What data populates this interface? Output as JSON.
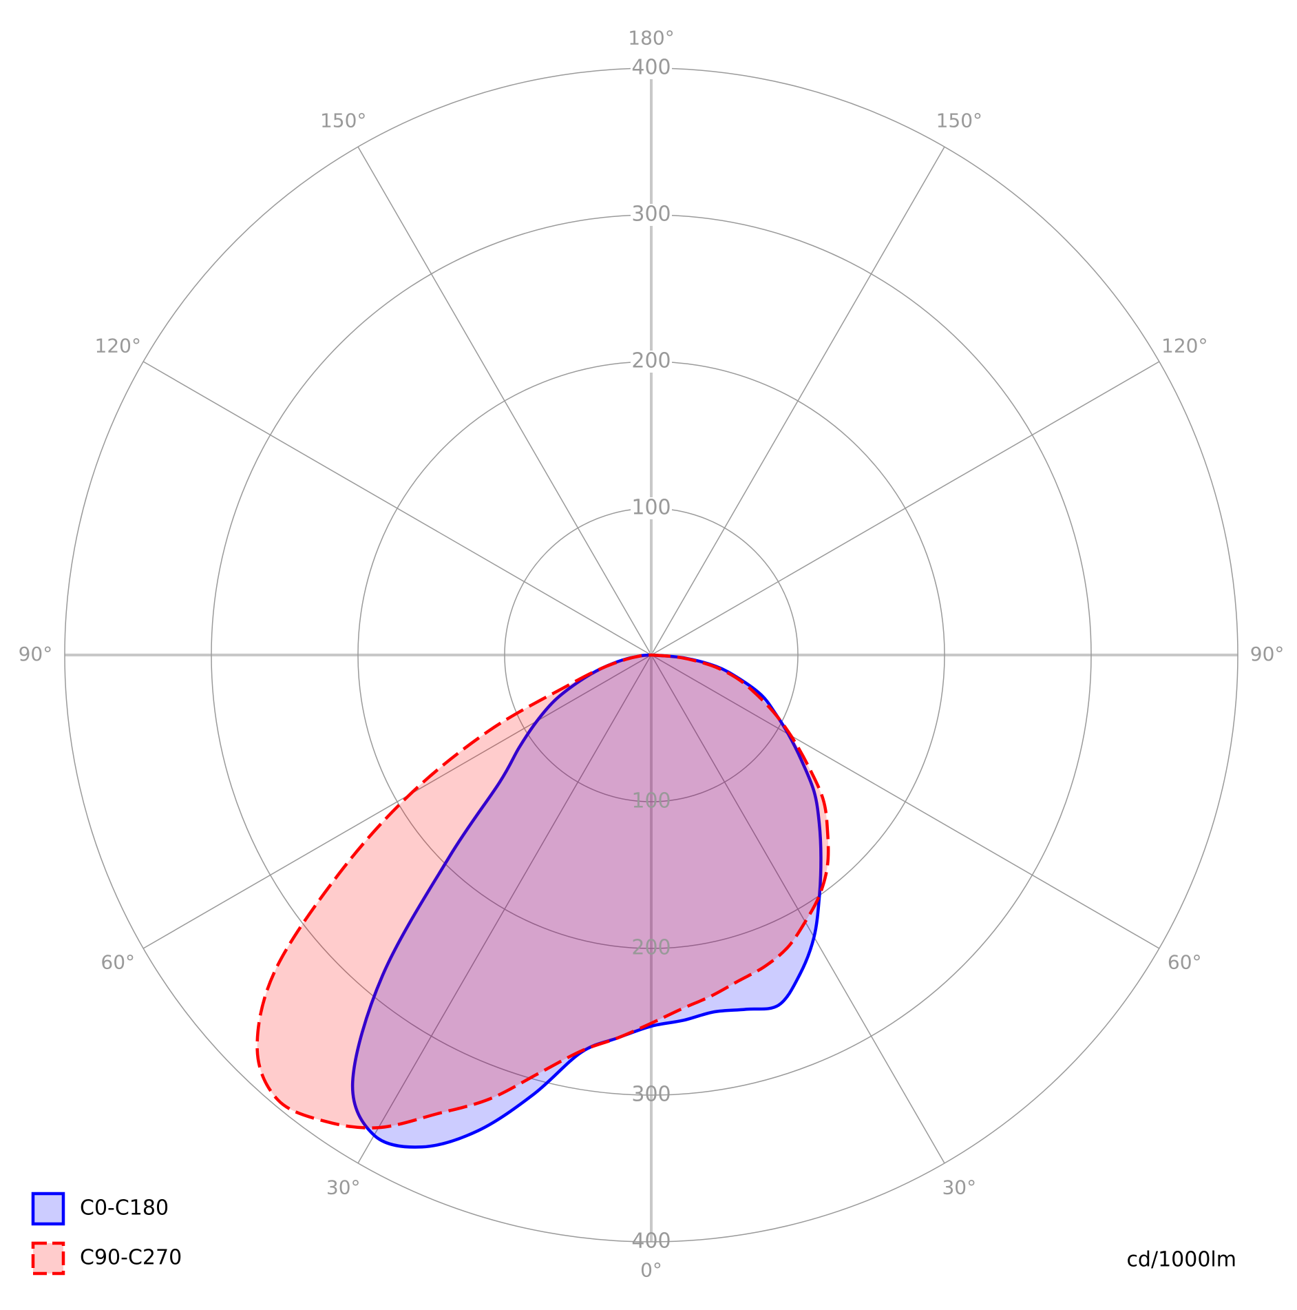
{
  "chart_data": {
    "type": "polar",
    "unit_label": "cd/1000lm",
    "x": [
      -90,
      -85,
      -80,
      -75,
      -70,
      -65,
      -60,
      -55,
      -50,
      -45,
      -40,
      -35,
      -30,
      -25,
      -20,
      -15,
      -10,
      -5,
      0,
      5,
      10,
      15,
      20,
      25,
      30,
      35,
      40,
      45,
      50,
      55,
      60,
      65,
      70,
      75,
      80,
      85,
      90
    ],
    "series": [
      {
        "name": "C0-C180",
        "color": "#0000ff",
        "dashed": false,
        "values": [
          0,
          22,
          45,
          62,
          80,
          93,
          108,
          125,
          145,
          162,
          180,
          200,
          222,
          240,
          254,
          250,
          247,
          250,
          253,
          262,
          275,
          310,
          345,
          370,
          378,
          355,
          285,
          195,
          135,
          110,
          90,
          72,
          52,
          35,
          20,
          8,
          0
        ]
      },
      {
        "name": "C90-C270",
        "color": "#ff0000",
        "dashed": true,
        "values": [
          0,
          20,
          42,
          60,
          75,
          92,
          110,
          130,
          153,
          170,
          187,
          200,
          210,
          220,
          226,
          230,
          236,
          242,
          251,
          262,
          274,
          295,
          322,
          345,
          372,
          388,
          396,
          380,
          335,
          260,
          190,
          122,
          60,
          35,
          18,
          8,
          0
        ]
      }
    ],
    "ylim": [
      0,
      400
    ],
    "yticks": [
      100,
      200,
      300,
      400
    ],
    "xticks": [
      {
        "value": -150,
        "label": "150°"
      },
      {
        "value": -120,
        "label": "120°"
      },
      {
        "value": -90,
        "label": "90°"
      },
      {
        "value": -60,
        "label": "60°"
      },
      {
        "value": -30,
        "label": "30°"
      },
      {
        "value": 0,
        "label": "0°"
      },
      {
        "value": 30,
        "label": "30°"
      },
      {
        "value": 60,
        "label": "60°"
      },
      {
        "value": 90,
        "label": "90°"
      },
      {
        "value": 120,
        "label": "120°"
      },
      {
        "value": 150,
        "label": "150°"
      },
      {
        "value": 180,
        "label": "180°"
      }
    ],
    "grid": true
  }
}
